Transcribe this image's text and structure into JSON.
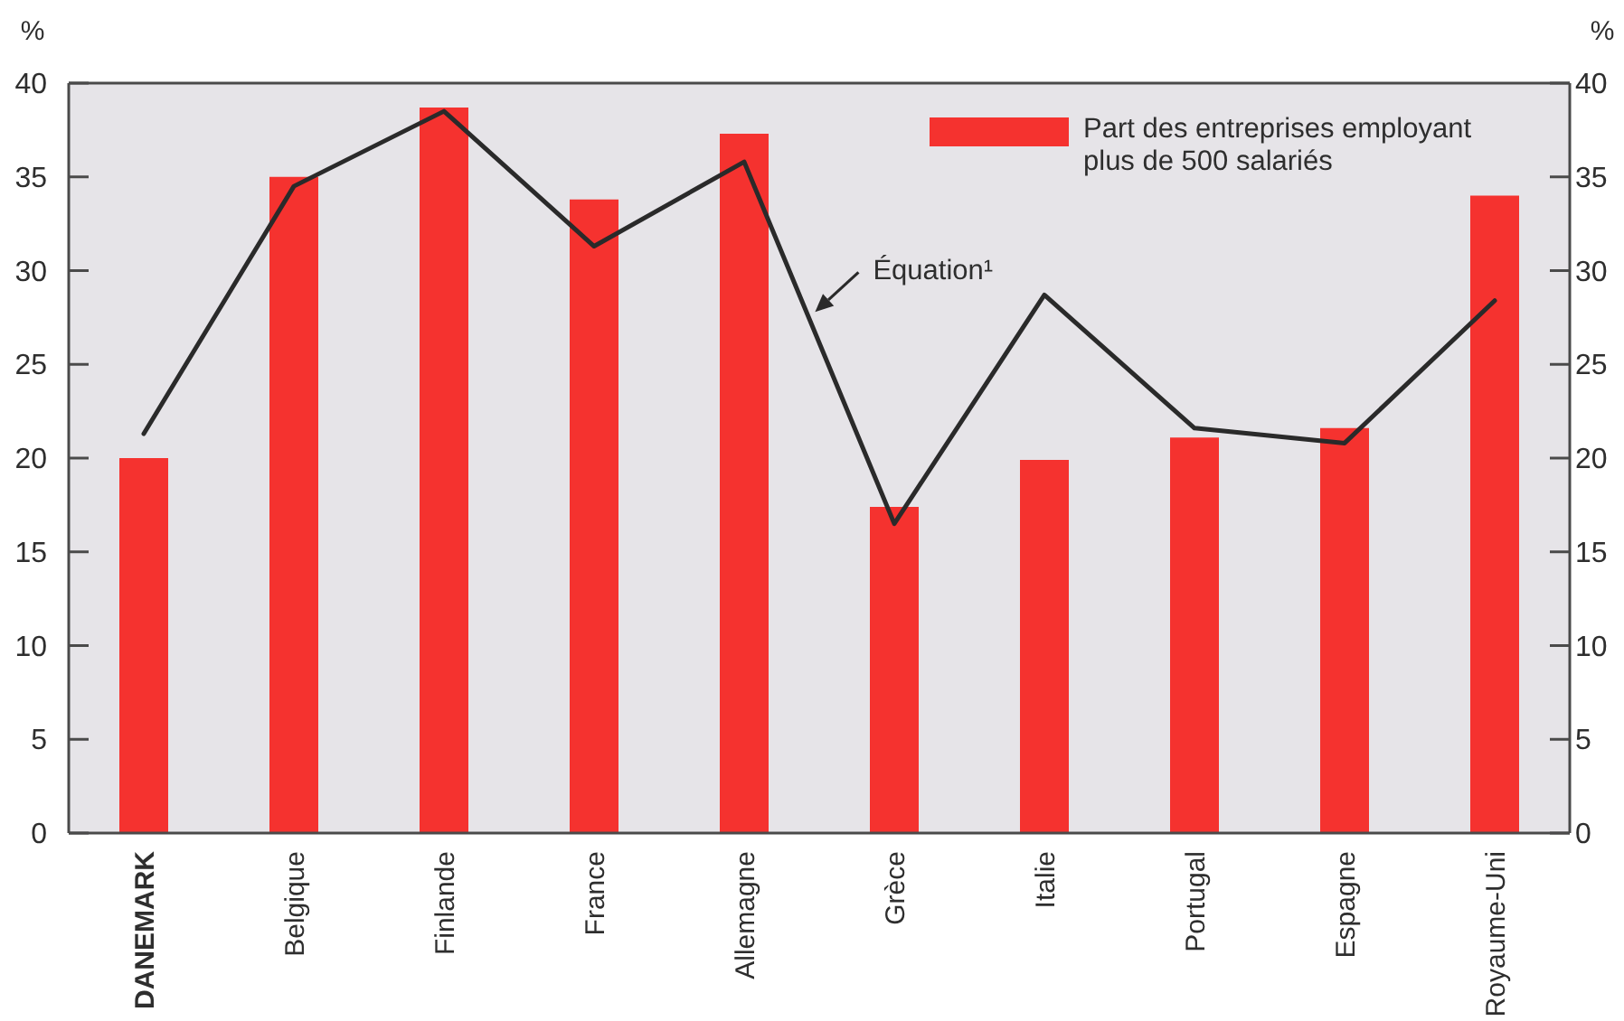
{
  "chart_data": {
    "type": "bar",
    "categories": [
      "DANEMARK",
      "Belgique",
      "Finlande",
      "France",
      "Allemagne",
      "Grèce",
      "Italie",
      "Portugal",
      "Espagne",
      "Royaume-Uni"
    ],
    "series": [
      {
        "name": "Part des entreprises employant plus de 500 salariés",
        "color": "#f5322f",
        "values": [
          20.0,
          35.0,
          38.7,
          33.8,
          37.3,
          17.4,
          19.9,
          21.1,
          21.6,
          34.0
        ]
      },
      {
        "name": "Équation¹",
        "type": "line",
        "color": "#2a2a2a",
        "values": [
          21.3,
          34.5,
          38.5,
          31.3,
          35.8,
          16.5,
          28.7,
          21.6,
          20.8,
          28.4
        ]
      }
    ],
    "ylabel": "%",
    "y2label": "%",
    "ylim": [
      0,
      40
    ],
    "yticks": [
      0,
      5,
      10,
      15,
      20,
      25,
      30,
      35,
      40
    ],
    "y2lim": [
      0,
      40
    ],
    "y2ticks": [
      0,
      5,
      10,
      15,
      20,
      25,
      30,
      35,
      40
    ],
    "legend": "top right",
    "grid": false,
    "marker": "none"
  }
}
